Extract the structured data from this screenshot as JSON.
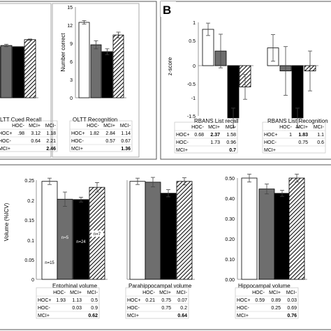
{
  "panel_labels": {
    "b": "B"
  },
  "chart_data": [
    {
      "id": "oltt_cued_recall",
      "type": "bar",
      "title": "OLTT Cued Recall",
      "title_shown": "LTT Cued Recall",
      "categories": [
        "HOC+",
        "HOC-",
        "MCI+",
        "MCI-"
      ],
      "values": [
        10.5,
        9.6,
        10.4,
        5.8
      ],
      "errors": [
        0.0,
        0.8,
        0.0,
        0.4
      ],
      "pattern": [
        "white",
        "gray",
        "black",
        "hatch"
      ],
      "table": {
        "header": [
          "",
          "HOC-",
          "MCI+",
          "MCI-"
        ],
        "rows": [
          [
            "HOC+",
            ".98",
            "3.12",
            "1.18"
          ],
          [
            "HOC-",
            "",
            "0.64",
            "2.21"
          ],
          [
            "MCI+",
            "",
            "",
            "2.46"
          ]
        ]
      }
    },
    {
      "id": "oltt_recognition",
      "type": "bar",
      "title": "OLTT Recognition",
      "ylabel": "Number correct",
      "ylim": [
        0,
        15
      ],
      "yticks": [
        "0",
        "3",
        "6",
        "9",
        "12",
        "15"
      ],
      "categories": [
        "HOC+",
        "HOC-",
        "MCI+",
        "MCI-"
      ],
      "values": [
        13.0,
        9.1,
        7.9,
        10.8
      ],
      "errors": [
        0.3,
        0.7,
        0.5,
        0.5
      ],
      "pattern": [
        "white",
        "gray",
        "black",
        "hatch"
      ],
      "table": {
        "header": [
          "",
          "HOC-",
          "MCI+",
          "MCI-"
        ],
        "rows": [
          [
            "HOC+",
            "1.82",
            "2.84",
            "1.14"
          ],
          [
            "HOC-",
            "",
            "0.57",
            "0.67"
          ],
          [
            "MCI+",
            "",
            "",
            "1.36"
          ]
        ]
      }
    },
    {
      "id": "rbans_list_recall",
      "type": "bar",
      "title": "RBANS List recall",
      "ylabel": "z-score",
      "ylim": [
        -1.5,
        1
      ],
      "yticks": [
        "1",
        "0.5",
        "0",
        "-0.5",
        "-1",
        "-1.5"
      ],
      "categories": [
        "HOC+",
        "HOC-",
        "MCI+",
        "MCI-"
      ],
      "values": [
        0.82,
        0.33,
        -1.18,
        -0.48
      ],
      "errors": [
        0.14,
        0.38,
        0.22,
        0.28
      ],
      "pattern": [
        "white",
        "gray",
        "black",
        "hatch"
      ],
      "table": {
        "header": [
          "",
          "HOC-",
          "MCI+",
          "MCI-"
        ],
        "rows": [
          [
            "HOC+",
            "0.68",
            "2.37",
            "1.58"
          ],
          [
            "HOC-",
            "",
            "1.73",
            "0.96"
          ],
          [
            "MCI+",
            "",
            "",
            "0.7"
          ]
        ]
      }
    },
    {
      "id": "rbans_list_recognition",
      "type": "bar",
      "title": "RBANS List Recognition",
      "categories": [
        "HOC+",
        "HOC-",
        "MCI+",
        "MCI-"
      ],
      "values": [
        0.4,
        -0.12,
        -1.18,
        -0.12
      ],
      "errors": [
        0.3,
        0.55,
        0.22,
        0.45
      ],
      "pattern": [
        "white",
        "gray",
        "black",
        "hatch"
      ],
      "table": {
        "header": [
          "",
          "HOC-",
          "MCI+",
          "MCI-"
        ],
        "rows": [
          [
            "HOC+",
            "1",
            "1.83",
            "1.1"
          ],
          [
            "HOC-",
            "",
            "0.75",
            "0.6"
          ],
          [
            "MCI+",
            "",
            "",
            ""
          ]
        ]
      }
    },
    {
      "id": "entorhinal_volume",
      "type": "bar",
      "title": "Entorhinal volume",
      "ylabel": "Volume (%ICV)",
      "ylim": [
        0,
        0.25
      ],
      "yticks": [
        "0.25",
        "0.2",
        "0.15",
        "0.1",
        "0.05",
        "0"
      ],
      "categories": [
        "HOC+",
        "HOC-",
        "MCI+",
        "MCI-"
      ],
      "values": [
        0.247,
        0.202,
        0.201,
        0.232
      ],
      "errors": [
        0.008,
        0.018,
        0.006,
        0.012
      ],
      "pattern": [
        "white",
        "gray",
        "black",
        "hatch"
      ],
      "bar_labels": [
        "n=15",
        "n=5",
        "n=24",
        "n=7"
      ],
      "table": {
        "header": [
          "",
          "HOC-",
          "MCI+",
          "MCI-"
        ],
        "rows": [
          [
            "HOC+",
            "1.93",
            "1.13",
            "0.5"
          ],
          [
            "HOC-",
            "",
            "0.03",
            "0.9"
          ],
          [
            "MCI+",
            "",
            "",
            "0.62"
          ]
        ]
      }
    },
    {
      "id": "parahippocampal_volume",
      "type": "bar",
      "title": "Parahippocampal volume",
      "ylim": [
        0,
        0.25
      ],
      "yticks": [
        "0.25",
        "0.2",
        "0.15",
        "0.1",
        "0.05",
        "0"
      ],
      "categories": [
        "HOC+",
        "HOC-",
        "MCI+",
        "MCI-"
      ],
      "values": [
        0.247,
        0.245,
        0.217,
        0.247
      ],
      "errors": [
        0.008,
        0.012,
        0.009,
        0.009
      ],
      "pattern": [
        "white",
        "gray",
        "black",
        "hatch"
      ],
      "table": {
        "header": [
          "",
          "HOC-",
          "MCI+",
          "MCI-"
        ],
        "rows": [
          [
            "HOC+",
            "0.21",
            "0.75",
            "0.07"
          ],
          [
            "HOC-",
            "",
            "0.75",
            "0.2"
          ],
          [
            "MCI+",
            "",
            "",
            "0.64"
          ]
        ]
      }
    },
    {
      "id": "hippocampal_volume",
      "type": "bar",
      "title": "Hippocampal volume",
      "ylim": [
        0,
        0.5
      ],
      "yticks": [
        "0.50",
        "0.40",
        "0.30",
        "0.20",
        "0.10",
        "0.00"
      ],
      "categories": [
        "HOC+",
        "HOC-",
        "MCI+",
        "MCI-"
      ],
      "values": [
        0.51,
        0.455,
        0.433,
        0.51
      ],
      "errors": [
        0.02,
        0.025,
        0.015,
        0.02
      ],
      "pattern": [
        "white",
        "gray",
        "black",
        "hatch"
      ],
      "table": {
        "header": [
          "",
          "HOC-",
          "MCI+",
          "MCI-"
        ],
        "rows": [
          [
            "HOC+",
            "0.59",
            "0.89",
            "0.03"
          ],
          [
            "HOC-",
            "",
            "0.25",
            "0.69"
          ],
          [
            "MCI+",
            "",
            "",
            "0.76"
          ]
        ]
      }
    }
  ]
}
